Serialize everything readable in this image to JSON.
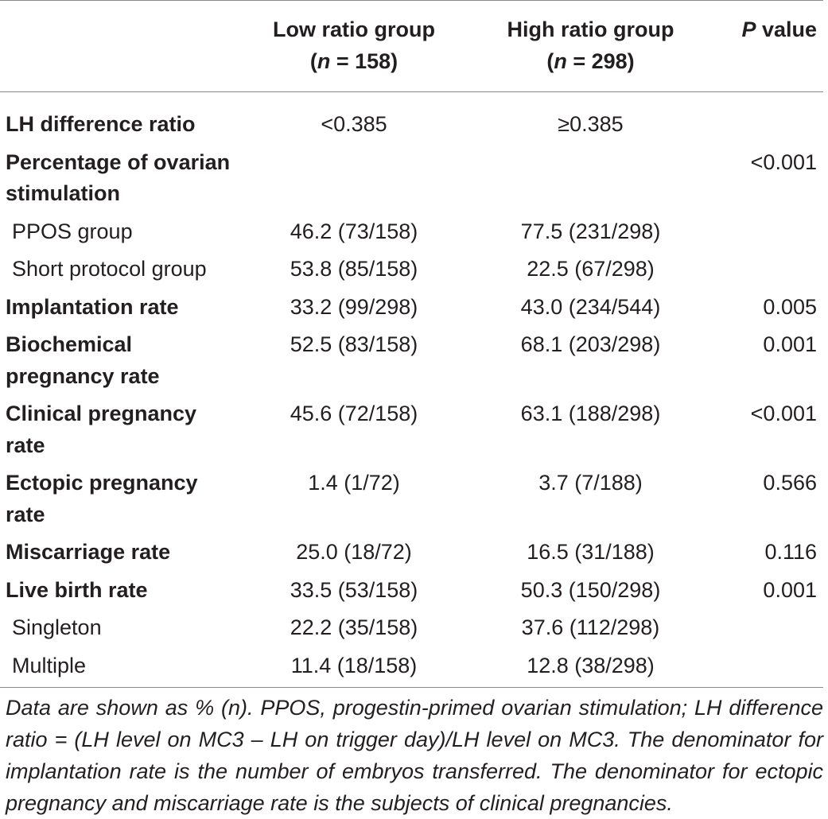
{
  "table": {
    "headers": {
      "low_group": "Low ratio group",
      "low_n_label": "n",
      "low_n_value": " = 158)",
      "high_group": "High ratio group",
      "high_n_label": "n",
      "high_n_value": " = 298)",
      "p_label": "P",
      "p_rest": " value"
    },
    "rows": [
      {
        "label": "LH difference ratio",
        "style": "bold",
        "low": "<0.385",
        "high": "≥0.385",
        "p": ""
      },
      {
        "label": "Percentage of ovarian stimulation",
        "style": "bold",
        "low": "",
        "high": "",
        "p": "<0.001"
      },
      {
        "label": "PPOS group",
        "style": "sub",
        "low": "46.2 (73/158)",
        "high": "77.5 (231/298)",
        "p": ""
      },
      {
        "label": "Short protocol group",
        "style": "sub",
        "low": "53.8 (85/158)",
        "high": "22.5 (67/298)",
        "p": ""
      },
      {
        "label": "Implantation rate",
        "style": "bold",
        "low": "33.2 (99/298)",
        "high": "43.0 (234/544)",
        "p": "0.005"
      },
      {
        "label": "Biochemical pregnancy rate",
        "style": "bold",
        "low": "52.5 (83/158)",
        "high": "68.1 (203/298)",
        "p": "0.001"
      },
      {
        "label": "Clinical pregnancy rate",
        "style": "bold",
        "low": "45.6 (72/158)",
        "high": "63.1 (188/298)",
        "p": "<0.001"
      },
      {
        "label": "Ectopic pregnancy rate",
        "style": "bold",
        "low": "1.4 (1/72)",
        "high": "3.7 (7/188)",
        "p": "0.566"
      },
      {
        "label": "Miscarriage rate",
        "style": "bold",
        "low": "25.0 (18/72)",
        "high": "16.5 (31/188)",
        "p": "0.116"
      },
      {
        "label": "Live birth rate",
        "style": "bold",
        "low": "33.5 (53/158)",
        "high": "50.3 (150/298)",
        "p": "0.001"
      },
      {
        "label": "Singleton",
        "style": "sub",
        "low": "22.2 (35/158)",
        "high": "37.6 (112/298)",
        "p": ""
      },
      {
        "label": "Multiple",
        "style": "sub",
        "low": "11.4 (18/158)",
        "high": "12.8 (38/298)",
        "p": ""
      }
    ]
  },
  "footnote": "Data are shown as % (n). PPOS, progestin-primed ovarian stimulation; LH difference ratio = (LH level on MC3 – LH on trigger day)/LH level on MC3. The denominator for implantation rate is the number of embryos transferred. The denominator for ectopic pregnancy and miscarriage rate is the subjects of clinical pregnancies."
}
